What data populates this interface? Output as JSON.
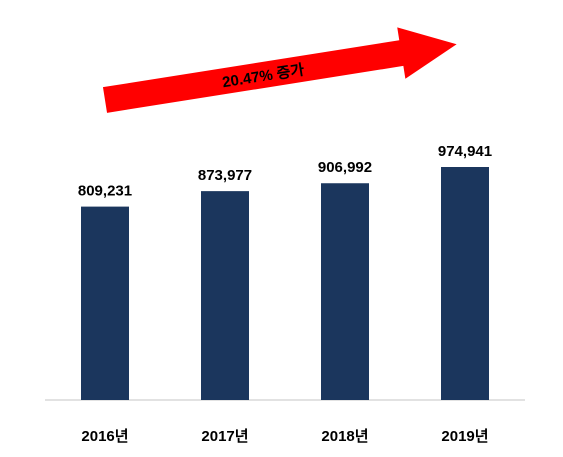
{
  "chart_data": {
    "type": "bar",
    "categories": [
      "2016년",
      "2017년",
      "2018년",
      "2019년"
    ],
    "values": [
      809231,
      873977,
      906992,
      974941
    ],
    "value_labels": [
      "809,231",
      "873,977",
      "906,992",
      "974,941"
    ],
    "color": "#1b365d",
    "annotation": "20.47% 증가",
    "annotation_color": "#ff0000"
  }
}
